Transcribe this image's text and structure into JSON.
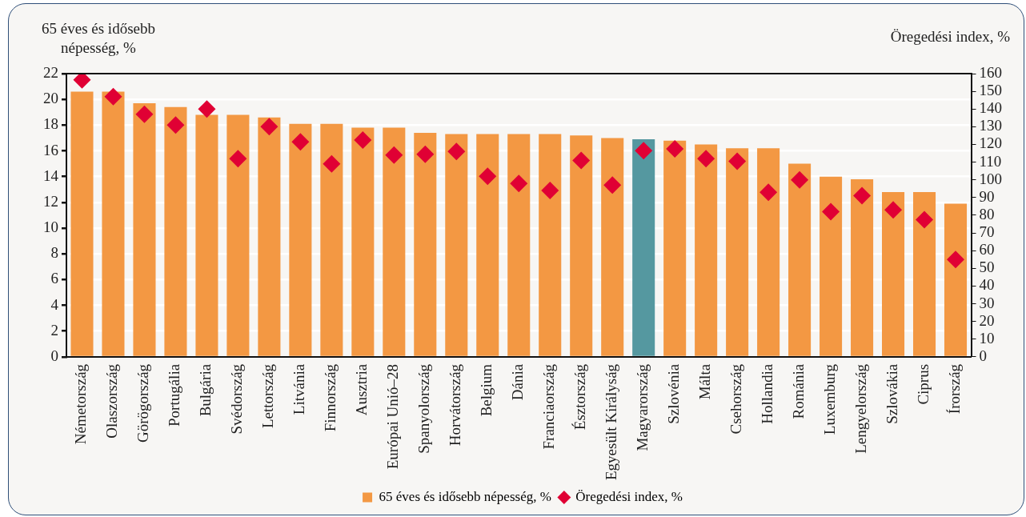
{
  "chart_data": {
    "type": "bar",
    "ylabel": "65 éves és idősebb népesség, %",
    "y2label": "Öregedési index, %",
    "categories": [
      "Németország",
      "Olaszország",
      "Görögország",
      "Portugália",
      "Bulgária",
      "Svédország",
      "Lettország",
      "Litvánia",
      "Finnország",
      "Ausztria",
      "Európai Unió–28",
      "Spanyolország",
      "Horvátország",
      "Belgium",
      "Dánia",
      "Franciaország",
      "Észtország",
      "Egyesült Királyság",
      "Magyarország",
      "Szlovénia",
      "Málta",
      "Csehország",
      "Hollandia",
      "Románia",
      "Luxemburg",
      "Lengyelország",
      "Szlovákia",
      "Ciprus",
      "Írország"
    ],
    "series": [
      {
        "name": "65 éves és idősebb népesség, %",
        "color": "#f39843",
        "colors": [
          "#f39843",
          "#f39843",
          "#f39843",
          "#f39843",
          "#f39843",
          "#f39843",
          "#f39843",
          "#f39843",
          "#f39843",
          "#f39843",
          "#f39843",
          "#f39843",
          "#f39843",
          "#f39843",
          "#f39843",
          "#f39843",
          "#f39843",
          "#f39843",
          "#5598a0",
          "#f39843",
          "#f39843",
          "#f39843",
          "#f39843",
          "#f39843",
          "#f39843",
          "#f39843",
          "#f39843",
          "#f39843",
          "#f39843"
        ],
        "values": [
          20.6,
          20.6,
          19.7,
          19.4,
          18.8,
          18.8,
          18.6,
          18.1,
          18.1,
          17.8,
          17.8,
          17.4,
          17.3,
          17.3,
          17.3,
          17.3,
          17.2,
          17.0,
          16.9,
          16.8,
          16.5,
          16.2,
          16.2,
          15.0,
          14.0,
          13.8,
          12.8,
          12.8,
          11.9
        ]
      },
      {
        "name": "Öregedési index, %",
        "type": "scatter",
        "axis": "y2",
        "marker": "diamond",
        "color": "#e00034",
        "values": [
          156.5,
          147,
          137,
          131,
          140,
          112,
          130,
          121.5,
          109,
          122.5,
          114,
          114.5,
          116,
          102,
          98,
          94,
          111,
          97,
          116.5,
          117.5,
          112,
          110.5,
          93,
          100,
          82,
          91,
          83,
          77.5,
          55
        ]
      }
    ],
    "ylim": [
      0,
      22
    ],
    "yticks": [
      0,
      2,
      4,
      6,
      8,
      10,
      12,
      14,
      16,
      18,
      20,
      22
    ],
    "y2lim": [
      0,
      160
    ],
    "y2ticks": [
      0,
      10,
      20,
      30,
      40,
      50,
      60,
      70,
      80,
      90,
      100,
      110,
      120,
      130,
      140,
      150,
      160
    ],
    "grid": "y",
    "legend": "bottom"
  }
}
